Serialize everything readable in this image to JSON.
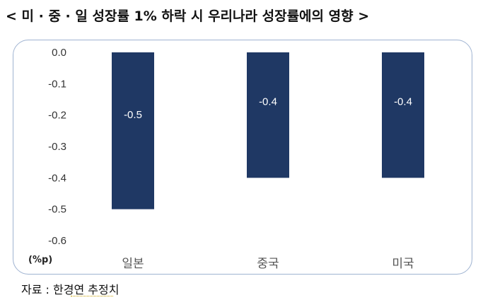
{
  "title": "< 미 · 중 · 일 성장률 1% 하락 시 우리나라 성장률에의 영향 >",
  "source": "자료 : 한경연 추정치",
  "chart_data": {
    "type": "bar",
    "categories": [
      "일본",
      "중국",
      "미국"
    ],
    "values": [
      -0.5,
      -0.4,
      -0.4
    ],
    "data_labels": [
      "-0.5",
      "-0.4",
      "-0.4"
    ],
    "ylim": [
      -0.6,
      0.0
    ],
    "yticks": [
      "0.0",
      "-0.1",
      "-0.2",
      "-0.3",
      "-0.4",
      "-0.5",
      "-0.6"
    ],
    "ytick_values": [
      0.0,
      -0.1,
      -0.2,
      -0.3,
      -0.4,
      -0.5,
      -0.6
    ],
    "ylabel": "(%p)",
    "xlabel": "",
    "title": "",
    "bar_color": "#1f3864",
    "label_color": "#ffffff",
    "grid": false,
    "frame_color": "#9fb3d1"
  }
}
